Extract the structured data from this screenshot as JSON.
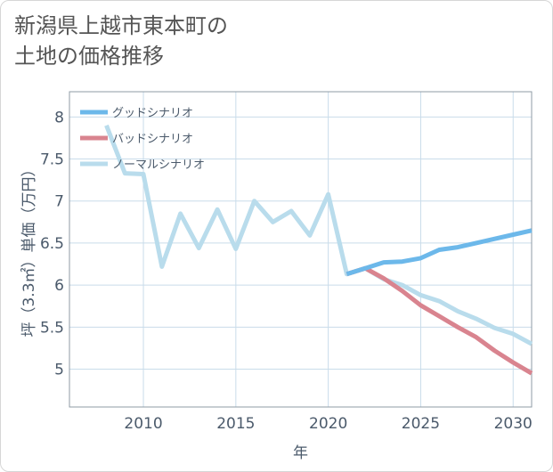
{
  "title_line1": "新潟県上越市東本町の",
  "title_line2": "土地の価格推移",
  "chart_data": {
    "type": "line",
    "title": "新潟県上越市東本町の土地の価格推移",
    "xlabel": "年",
    "ylabel": "坪（3.3㎡）単価（万円）",
    "xlim": [
      2006,
      2031
    ],
    "ylim": [
      4.55,
      8.3
    ],
    "xticks": [
      2010,
      2015,
      2020,
      2025,
      2030
    ],
    "yticks": [
      5,
      5.5,
      6,
      6.5,
      7,
      7.5,
      8
    ],
    "grid": true,
    "legend_position": "top-left",
    "series": [
      {
        "name": "グッドシナリオ",
        "color": "#6cb8ea",
        "x": [
          2021,
          2022,
          2023,
          2024,
          2025,
          2026,
          2027,
          2028,
          2029,
          2030,
          2031
        ],
        "y": [
          6.13,
          6.2,
          6.27,
          6.28,
          6.32,
          6.42,
          6.45,
          6.5,
          6.55,
          6.6,
          6.65
        ]
      },
      {
        "name": "バッドシナリオ",
        "color": "#d9848f",
        "x": [
          2021,
          2022,
          2023,
          2024,
          2025,
          2026,
          2027,
          2028,
          2029,
          2030,
          2031
        ],
        "y": [
          6.13,
          6.2,
          6.08,
          5.93,
          5.76,
          5.63,
          5.5,
          5.38,
          5.22,
          5.08,
          4.95
        ]
      },
      {
        "name": "ノーマルシナリオ",
        "color": "#b9dcec",
        "x": [
          2008,
          2009,
          2010,
          2011,
          2012,
          2013,
          2014,
          2015,
          2016,
          2017,
          2018,
          2019,
          2020,
          2021,
          2022,
          2023,
          2024,
          2025,
          2026,
          2027,
          2028,
          2029,
          2030,
          2031
        ],
        "y": [
          7.9,
          7.33,
          7.32,
          6.22,
          6.85,
          6.44,
          6.9,
          6.43,
          7.0,
          6.75,
          6.88,
          6.59,
          7.08,
          6.13,
          6.2,
          6.07,
          6.0,
          5.88,
          5.81,
          5.69,
          5.6,
          5.49,
          5.42,
          5.3
        ]
      }
    ]
  }
}
